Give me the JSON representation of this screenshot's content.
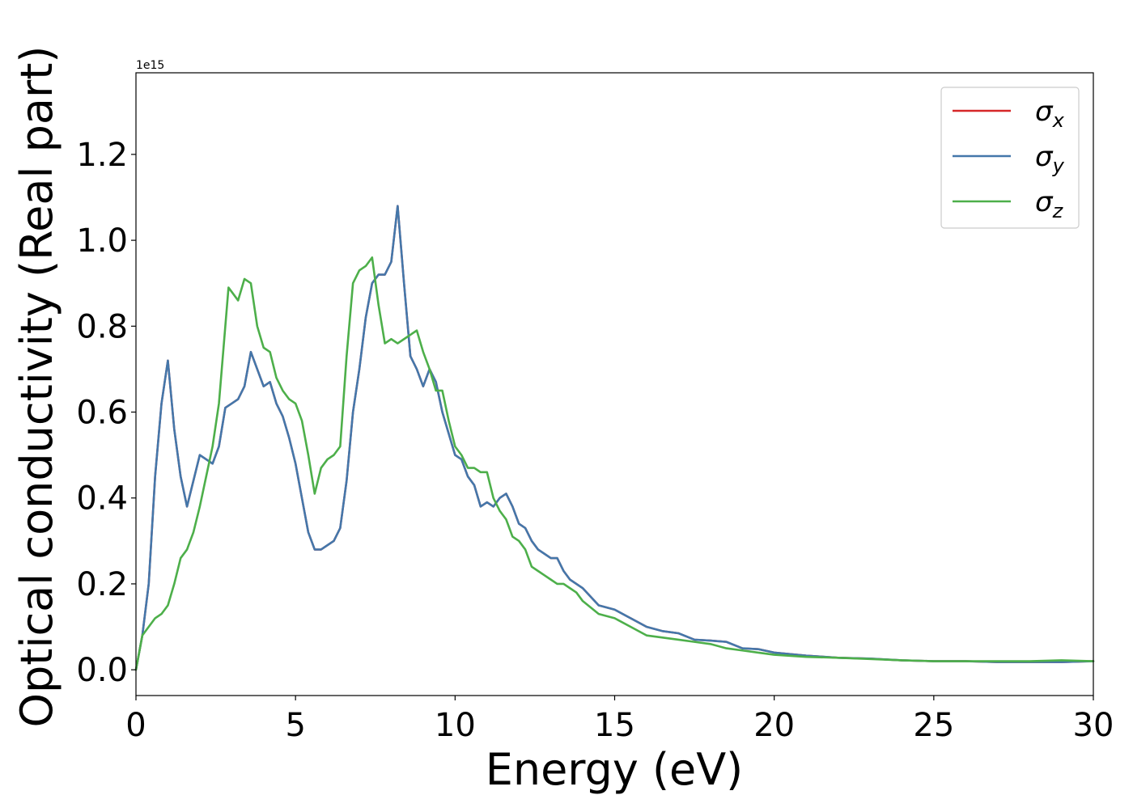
{
  "chart_data": {
    "type": "line",
    "title": "",
    "xlabel": "Energy (eV)",
    "ylabel": "Optical conductivity (Real part)",
    "offset_text": "1e15",
    "xlim": [
      0,
      30
    ],
    "ylim": [
      -0.06,
      1.39
    ],
    "xticks": [
      0,
      5,
      10,
      15,
      20,
      25,
      30
    ],
    "xtick_labels": [
      "0",
      "5",
      "10",
      "15",
      "20",
      "25",
      "30"
    ],
    "yticks": [
      0.0,
      0.2,
      0.4,
      0.6,
      0.8,
      1.0,
      1.2
    ],
    "ytick_labels": [
      "0.0",
      "0.2",
      "0.4",
      "0.6",
      "0.8",
      "1.0",
      "1.2"
    ],
    "grid": false,
    "legend_position": "top-right",
    "series": [
      {
        "name": "σx",
        "symbol": "σ",
        "subscript": "x",
        "color": "#d62728",
        "x": [
          0,
          0.2,
          0.4,
          0.6,
          0.8,
          1.0,
          1.2,
          1.4,
          1.6,
          1.8,
          2.0,
          2.2,
          2.4,
          2.6,
          2.8,
          3.0,
          3.2,
          3.4,
          3.6,
          3.8,
          4.0,
          4.2,
          4.4,
          4.6,
          4.8,
          5.0,
          5.2,
          5.4,
          5.6,
          5.8,
          6.0,
          6.2,
          6.4,
          6.6,
          6.8,
          7.0,
          7.2,
          7.4,
          7.6,
          7.8,
          8.0,
          8.2,
          8.4,
          8.6,
          8.8,
          9.0,
          9.2,
          9.4,
          9.6,
          9.8,
          10.0,
          10.2,
          10.4,
          10.6,
          10.8,
          11.0,
          11.2,
          11.4,
          11.6,
          11.8,
          12.0,
          12.2,
          12.4,
          12.6,
          12.8,
          13.0,
          13.2,
          13.4,
          13.6,
          13.8,
          14.0,
          14.5,
          15.0,
          15.5,
          16.0,
          16.5,
          17.0,
          17.5,
          18.0,
          18.5,
          19.0,
          19.5,
          20.0,
          21.0,
          22.0,
          23.0,
          24.0,
          25.0,
          26.0,
          27.0,
          28.0,
          29.0,
          30.0
        ],
        "y": [
          0.0,
          0.08,
          0.2,
          0.45,
          0.62,
          0.72,
          0.56,
          0.45,
          0.38,
          0.44,
          0.5,
          0.49,
          0.48,
          0.52,
          0.61,
          0.62,
          0.63,
          0.66,
          0.74,
          0.7,
          0.66,
          0.67,
          0.62,
          0.59,
          0.54,
          0.48,
          0.4,
          0.32,
          0.28,
          0.28,
          0.29,
          0.3,
          0.33,
          0.44,
          0.6,
          0.7,
          0.82,
          0.9,
          0.92,
          0.92,
          0.95,
          1.08,
          0.9,
          0.73,
          0.7,
          0.66,
          0.7,
          0.67,
          0.6,
          0.55,
          0.5,
          0.49,
          0.45,
          0.43,
          0.38,
          0.39,
          0.38,
          0.4,
          0.41,
          0.38,
          0.34,
          0.33,
          0.3,
          0.28,
          0.27,
          0.26,
          0.26,
          0.23,
          0.21,
          0.2,
          0.19,
          0.15,
          0.14,
          0.12,
          0.1,
          0.09,
          0.085,
          0.07,
          0.068,
          0.065,
          0.05,
          0.048,
          0.04,
          0.033,
          0.028,
          0.026,
          0.022,
          0.02,
          0.02,
          0.018,
          0.018,
          0.018,
          0.02
        ]
      },
      {
        "name": "σy",
        "symbol": "σ",
        "subscript": "y",
        "color": "#4477aa",
        "x": [
          0,
          0.2,
          0.4,
          0.6,
          0.8,
          1.0,
          1.2,
          1.4,
          1.6,
          1.8,
          2.0,
          2.2,
          2.4,
          2.6,
          2.8,
          3.0,
          3.2,
          3.4,
          3.6,
          3.8,
          4.0,
          4.2,
          4.4,
          4.6,
          4.8,
          5.0,
          5.2,
          5.4,
          5.6,
          5.8,
          6.0,
          6.2,
          6.4,
          6.6,
          6.8,
          7.0,
          7.2,
          7.4,
          7.6,
          7.8,
          8.0,
          8.2,
          8.4,
          8.6,
          8.8,
          9.0,
          9.2,
          9.4,
          9.6,
          9.8,
          10.0,
          10.2,
          10.4,
          10.6,
          10.8,
          11.0,
          11.2,
          11.4,
          11.6,
          11.8,
          12.0,
          12.2,
          12.4,
          12.6,
          12.8,
          13.0,
          13.2,
          13.4,
          13.6,
          13.8,
          14.0,
          14.5,
          15.0,
          15.5,
          16.0,
          16.5,
          17.0,
          17.5,
          18.0,
          18.5,
          19.0,
          19.5,
          20.0,
          21.0,
          22.0,
          23.0,
          24.0,
          25.0,
          26.0,
          27.0,
          28.0,
          29.0,
          30.0
        ],
        "y": [
          0.0,
          0.08,
          0.2,
          0.45,
          0.62,
          0.72,
          0.56,
          0.45,
          0.38,
          0.44,
          0.5,
          0.49,
          0.48,
          0.52,
          0.61,
          0.62,
          0.63,
          0.66,
          0.74,
          0.7,
          0.66,
          0.67,
          0.62,
          0.59,
          0.54,
          0.48,
          0.4,
          0.32,
          0.28,
          0.28,
          0.29,
          0.3,
          0.33,
          0.44,
          0.6,
          0.7,
          0.82,
          0.9,
          0.92,
          0.92,
          0.95,
          1.08,
          0.9,
          0.73,
          0.7,
          0.66,
          0.7,
          0.67,
          0.6,
          0.55,
          0.5,
          0.49,
          0.45,
          0.43,
          0.38,
          0.39,
          0.38,
          0.4,
          0.41,
          0.38,
          0.34,
          0.33,
          0.3,
          0.28,
          0.27,
          0.26,
          0.26,
          0.23,
          0.21,
          0.2,
          0.19,
          0.15,
          0.14,
          0.12,
          0.1,
          0.09,
          0.085,
          0.07,
          0.068,
          0.065,
          0.05,
          0.048,
          0.04,
          0.033,
          0.028,
          0.026,
          0.022,
          0.02,
          0.02,
          0.018,
          0.018,
          0.018,
          0.02
        ]
      },
      {
        "name": "σz",
        "symbol": "σ",
        "subscript": "z",
        "color": "#4daf4a",
        "x": [
          0,
          0.2,
          0.4,
          0.6,
          0.8,
          1.0,
          1.2,
          1.4,
          1.6,
          1.8,
          2.0,
          2.2,
          2.4,
          2.6,
          2.8,
          2.9,
          3.0,
          3.2,
          3.4,
          3.6,
          3.8,
          4.0,
          4.2,
          4.4,
          4.6,
          4.8,
          5.0,
          5.2,
          5.4,
          5.6,
          5.8,
          6.0,
          6.2,
          6.4,
          6.6,
          6.8,
          7.0,
          7.2,
          7.4,
          7.6,
          7.8,
          8.0,
          8.2,
          8.4,
          8.6,
          8.8,
          9.0,
          9.2,
          9.4,
          9.6,
          9.8,
          10.0,
          10.2,
          10.4,
          10.6,
          10.8,
          11.0,
          11.2,
          11.4,
          11.6,
          11.8,
          12.0,
          12.2,
          12.4,
          12.6,
          12.8,
          13.0,
          13.2,
          13.4,
          13.6,
          13.8,
          14.0,
          14.5,
          15.0,
          15.5,
          16.0,
          16.5,
          17.0,
          17.5,
          18.0,
          18.5,
          19.0,
          19.5,
          20.0,
          21.0,
          22.0,
          23.0,
          24.0,
          25.0,
          26.0,
          27.0,
          28.0,
          29.0,
          30.0
        ],
        "y": [
          0.0,
          0.08,
          0.1,
          0.12,
          0.13,
          0.15,
          0.2,
          0.26,
          0.28,
          0.32,
          0.38,
          0.45,
          0.52,
          0.62,
          0.8,
          0.89,
          0.88,
          0.86,
          0.91,
          0.9,
          0.8,
          0.75,
          0.74,
          0.68,
          0.65,
          0.63,
          0.62,
          0.58,
          0.5,
          0.41,
          0.47,
          0.49,
          0.5,
          0.52,
          0.73,
          0.9,
          0.93,
          0.94,
          0.96,
          0.85,
          0.76,
          0.77,
          0.76,
          0.77,
          0.78,
          0.79,
          0.74,
          0.7,
          0.65,
          0.65,
          0.58,
          0.52,
          0.5,
          0.47,
          0.47,
          0.46,
          0.46,
          0.4,
          0.37,
          0.35,
          0.31,
          0.3,
          0.28,
          0.24,
          0.23,
          0.22,
          0.21,
          0.2,
          0.2,
          0.19,
          0.18,
          0.16,
          0.13,
          0.12,
          0.1,
          0.08,
          0.075,
          0.07,
          0.065,
          0.06,
          0.05,
          0.045,
          0.04,
          0.035,
          0.03,
          0.028,
          0.025,
          0.022,
          0.02,
          0.02,
          0.02,
          0.02,
          0.022,
          0.02
        ]
      }
    ]
  }
}
